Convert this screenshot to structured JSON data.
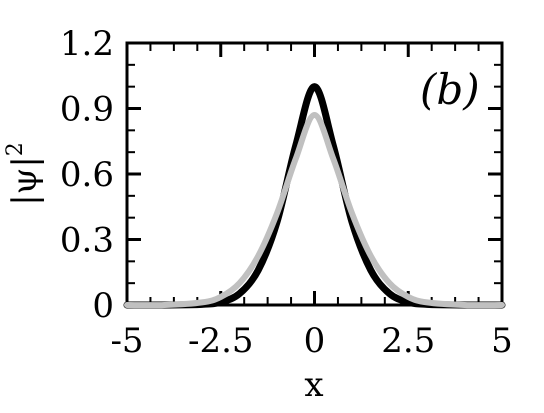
{
  "chart_data": {
    "type": "line",
    "panel_label": "(b)",
    "xlabel": "x",
    "ylabel_main": "|ψ|",
    "ylabel_sup": "2",
    "xlim": [
      -5,
      5
    ],
    "ylim": [
      0,
      1.2
    ],
    "x_ticks": [
      -5,
      -2.5,
      0,
      2.5,
      5
    ],
    "x_tick_labels": [
      "-5",
      "-2.5",
      "0",
      "2.5",
      "5"
    ],
    "y_ticks": [
      0,
      0.3,
      0.6,
      0.9,
      1.2
    ],
    "y_tick_labels": [
      "0",
      "0.3",
      "0.6",
      "0.9",
      "1.2"
    ],
    "grid": false,
    "series": [
      {
        "color": "#000000",
        "x": [
          -5,
          -4,
          -3,
          -2.5,
          -2,
          -1.5,
          -1,
          -0.5,
          0,
          0.5,
          1,
          1.5,
          2,
          2.5,
          3,
          4,
          5
        ],
        "y": [
          0,
          0,
          0.003,
          0.013,
          0.052,
          0.16,
          0.38,
          0.73,
          1.0,
          0.73,
          0.38,
          0.16,
          0.052,
          0.013,
          0.003,
          0,
          0
        ]
      },
      {
        "color": "#c0c0c0",
        "x": [
          -5,
          -4,
          -3,
          -2.5,
          -2,
          -1.5,
          -1,
          -0.5,
          0,
          0.5,
          1,
          1.5,
          2,
          2.5,
          3,
          4,
          5
        ],
        "y": [
          0,
          0,
          0.012,
          0.037,
          0.1,
          0.225,
          0.42,
          0.67,
          0.87,
          0.67,
          0.42,
          0.225,
          0.1,
          0.037,
          0.012,
          0,
          0
        ]
      }
    ]
  }
}
